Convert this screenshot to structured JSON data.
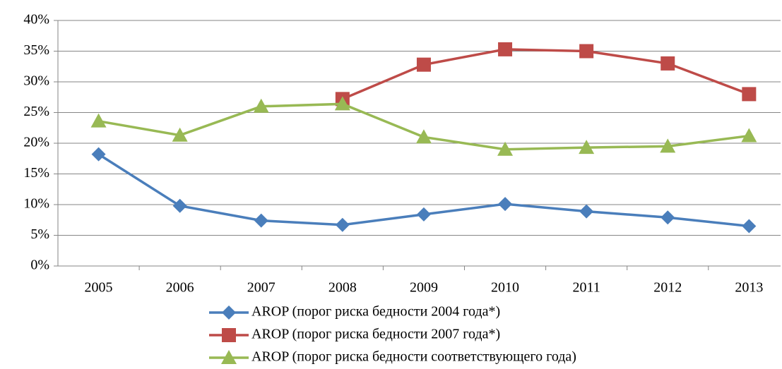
{
  "chart_data": {
    "type": "line",
    "categories": [
      "2005",
      "2006",
      "2007",
      "2008",
      "2009",
      "2010",
      "2011",
      "2012",
      "2013"
    ],
    "series": [
      {
        "name": "AROP (порог риска бедности 2004 года*)",
        "color": "#4a7ebb",
        "marker": "diamond",
        "values": [
          18.2,
          9.8,
          7.4,
          6.7,
          8.4,
          10.1,
          8.9,
          7.9,
          6.5
        ]
      },
      {
        "name": "AROP (порог риска бедности 2007 года*)",
        "color": "#be4b48",
        "marker": "square",
        "values": [
          null,
          null,
          null,
          27.2,
          32.8,
          35.3,
          35.0,
          33.0,
          28.0
        ]
      },
      {
        "name": "AROP (порог риска бедности соответствующего года)",
        "color": "#98b954",
        "marker": "triangle",
        "values": [
          23.6,
          21.3,
          26.0,
          26.4,
          21.0,
          19.0,
          19.3,
          19.5,
          21.2
        ]
      }
    ],
    "ylim": [
      0,
      40
    ],
    "yticks": [
      {
        "value": 0,
        "label": "0%"
      },
      {
        "value": 5,
        "label": "5%"
      },
      {
        "value": 10,
        "label": "10%"
      },
      {
        "value": 15,
        "label": "15%"
      },
      {
        "value": 20,
        "label": "20%"
      },
      {
        "value": 25,
        "label": "25%"
      },
      {
        "value": 30,
        "label": "30%"
      },
      {
        "value": 35,
        "label": "35%"
      },
      {
        "value": 40,
        "label": "40%"
      }
    ],
    "grid": true,
    "legend": "bottom"
  }
}
